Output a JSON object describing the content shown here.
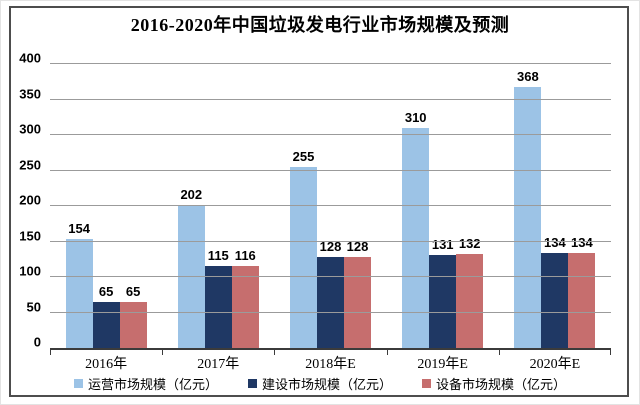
{
  "title": "2016-2020年中国垃圾发电行业市场规模及预测",
  "colors": {
    "operation_series": "#9CC3E6",
    "construction_series": "#1F3864",
    "equipment_series": "#C66E6E",
    "gridline": "#9B9B9B",
    "axis": "#3B3B3B",
    "frame_border": "#4D4D4D"
  },
  "chart_data": {
    "type": "bar",
    "title": "2016-2020年中国垃圾发电行业市场规模及预测",
    "categories": [
      "2016年",
      "2017年",
      "2018年E",
      "2019年E",
      "2020年E"
    ],
    "series": [
      {
        "name": "运营市场规模（亿元）",
        "color": "#9CC3E6",
        "values": [
          154,
          202,
          255,
          310,
          368
        ]
      },
      {
        "name": "建设市场规模（亿元）",
        "color": "#1F3864",
        "values": [
          65,
          115,
          128,
          131,
          134
        ]
      },
      {
        "name": "设备市场规模（亿元）",
        "color": "#C66E6E",
        "values": [
          65,
          116,
          128,
          132,
          134
        ]
      }
    ],
    "xlabel": "",
    "ylabel": "",
    "ylim": [
      0,
      400
    ],
    "yticks": [
      0,
      50,
      100,
      150,
      200,
      250,
      300,
      350,
      400
    ],
    "grid": true,
    "legend_position": "bottom"
  }
}
